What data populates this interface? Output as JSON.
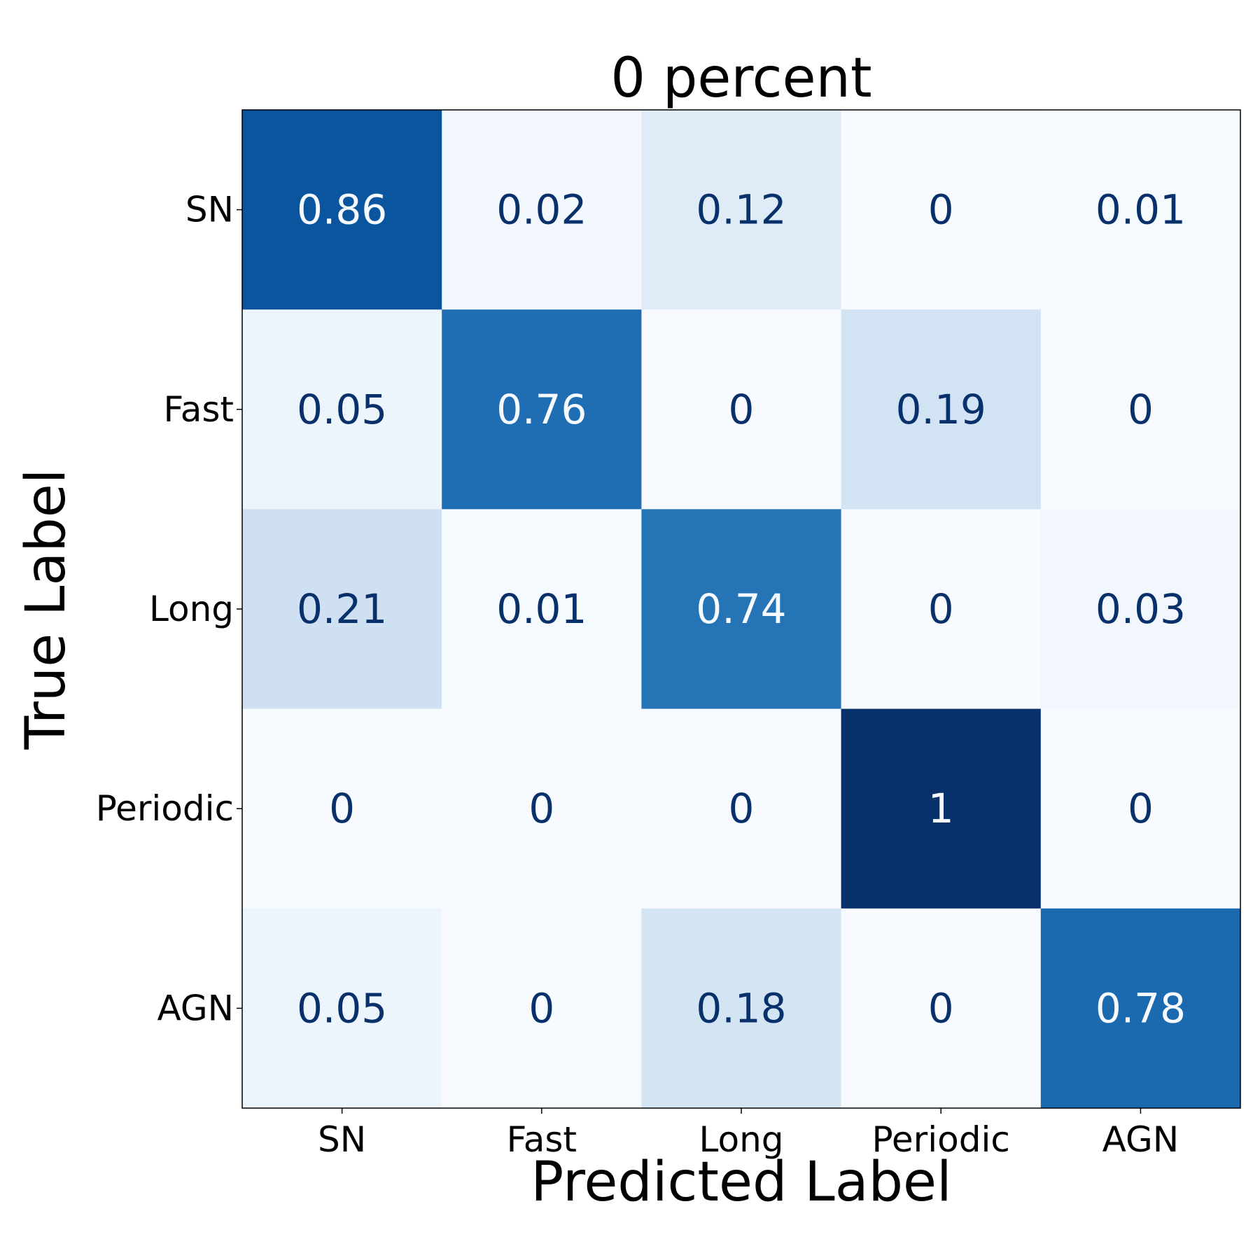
{
  "chart_data": {
    "type": "heatmap",
    "title": "0 percent",
    "xlabel": "Predicted Label",
    "ylabel": "True Label",
    "x_categories": [
      "SN",
      "Fast",
      "Long",
      "Periodic",
      "AGN"
    ],
    "y_categories": [
      "SN",
      "Fast",
      "Long",
      "Periodic",
      "AGN"
    ],
    "values": [
      [
        0.86,
        0.02,
        0.12,
        0,
        0.01
      ],
      [
        0.05,
        0.76,
        0,
        0.19,
        0
      ],
      [
        0.21,
        0.01,
        0.74,
        0,
        0.03
      ],
      [
        0,
        0,
        0,
        1,
        0
      ],
      [
        0.05,
        0,
        0.18,
        0,
        0.78
      ]
    ],
    "value_range": [
      0,
      1
    ],
    "colormap": "Blues",
    "colors": {
      "low": "#f7fbff",
      "high": "#08306b",
      "text_dark": "#08306b",
      "text_light": "#f7fbff"
    },
    "grid": false
  }
}
